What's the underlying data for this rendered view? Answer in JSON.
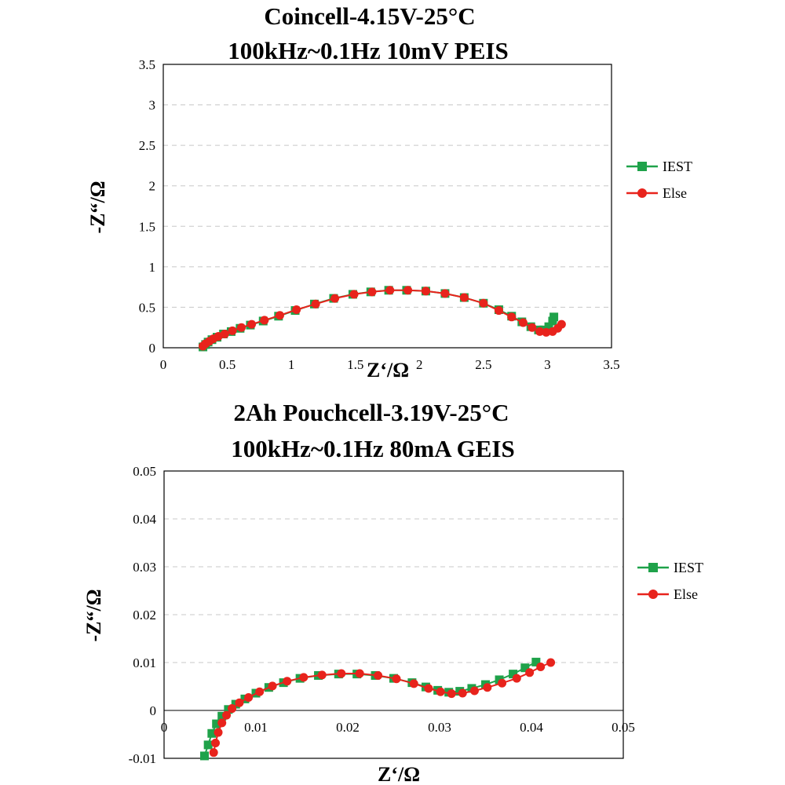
{
  "chart_data": [
    {
      "type": "scatter",
      "title_line1": "Coincell-4.15V-25°C",
      "title_line2": "100kHz~0.1Hz 10mV PEIS",
      "xlabel": "Z‘/Ω",
      "ylabel": "-Z“/Ω",
      "xlim": [
        0,
        3.5
      ],
      "ylim": [
        0,
        3.5
      ],
      "xticks": [
        "0",
        "0.5",
        "1",
        "1.5",
        "2",
        "2.5",
        "3",
        "3.5"
      ],
      "yticks": [
        "0",
        "0.5",
        "1",
        "1.5",
        "2",
        "2.5",
        "3",
        "3.5"
      ],
      "grid": "horizontal dashed",
      "legend_position": "right",
      "series": [
        {
          "name": "IEST",
          "color": "#1fa24a",
          "marker": "square",
          "x": [
            0.31,
            0.33,
            0.35,
            0.38,
            0.42,
            0.47,
            0.53,
            0.6,
            0.68,
            0.78,
            0.9,
            1.03,
            1.18,
            1.33,
            1.48,
            1.62,
            1.76,
            1.9,
            2.05,
            2.2,
            2.35,
            2.5,
            2.62,
            2.72,
            2.8,
            2.87,
            2.93,
            2.97,
            3.01,
            3.04,
            3.05
          ],
          "y": [
            0.01,
            0.04,
            0.07,
            0.1,
            0.13,
            0.17,
            0.2,
            0.24,
            0.28,
            0.33,
            0.39,
            0.46,
            0.54,
            0.61,
            0.66,
            0.69,
            0.71,
            0.71,
            0.7,
            0.67,
            0.62,
            0.55,
            0.47,
            0.39,
            0.32,
            0.26,
            0.22,
            0.22,
            0.26,
            0.33,
            0.38
          ]
        },
        {
          "name": "Else",
          "color": "#e8231c",
          "marker": "circle",
          "x": [
            0.31,
            0.33,
            0.36,
            0.39,
            0.43,
            0.48,
            0.54,
            0.61,
            0.69,
            0.79,
            0.91,
            1.04,
            1.19,
            1.34,
            1.49,
            1.63,
            1.77,
            1.91,
            2.05,
            2.2,
            2.35,
            2.5,
            2.62,
            2.72,
            2.81,
            2.88,
            2.94,
            2.99,
            3.04,
            3.08,
            3.11
          ],
          "y": [
            0.02,
            0.05,
            0.08,
            0.11,
            0.14,
            0.17,
            0.21,
            0.25,
            0.29,
            0.34,
            0.4,
            0.47,
            0.54,
            0.61,
            0.66,
            0.69,
            0.71,
            0.71,
            0.7,
            0.67,
            0.62,
            0.55,
            0.46,
            0.38,
            0.31,
            0.25,
            0.2,
            0.19,
            0.2,
            0.24,
            0.29
          ]
        }
      ]
    },
    {
      "type": "scatter",
      "title_line1": "2Ah Pouchcell-3.19V-25°C",
      "title_line2": "100kHz~0.1Hz 80mA GEIS",
      "xlabel": "Z‘/Ω",
      "ylabel": "-Z“/Ω",
      "xlim": [
        0,
        0.05
      ],
      "ylim": [
        -0.01,
        0.05
      ],
      "xticks": [
        "0",
        "0.01",
        "0.02",
        "0.03",
        "0.04",
        "0.05"
      ],
      "yticks": [
        "-0.01",
        "0",
        "0.01",
        "0.02",
        "0.03",
        "0.04",
        "0.05"
      ],
      "grid": "horizontal dashed",
      "legend_position": "right",
      "series": [
        {
          "name": "IEST",
          "color": "#1fa24a",
          "marker": "square",
          "x": [
            0.0044,
            0.0048,
            0.0052,
            0.0057,
            0.0063,
            0.007,
            0.0078,
            0.0088,
            0.01,
            0.0114,
            0.013,
            0.0148,
            0.0168,
            0.019,
            0.021,
            0.023,
            0.025,
            0.027,
            0.0285,
            0.0298,
            0.031,
            0.0322,
            0.0335,
            0.035,
            0.0365,
            0.038,
            0.0393,
            0.0405
          ],
          "y": [
            -0.0095,
            -0.0072,
            -0.0048,
            -0.0028,
            -0.0012,
            0.0002,
            0.0013,
            0.0024,
            0.0036,
            0.0048,
            0.0058,
            0.0067,
            0.0073,
            0.0076,
            0.0076,
            0.0073,
            0.0067,
            0.0058,
            0.0049,
            0.0042,
            0.0038,
            0.004,
            0.0046,
            0.0054,
            0.0064,
            0.0076,
            0.0089,
            0.0101
          ]
        },
        {
          "name": "Else",
          "color": "#e8231c",
          "marker": "circle",
          "x": [
            0.0054,
            0.0056,
            0.0059,
            0.0063,
            0.0068,
            0.0074,
            0.0082,
            0.0092,
            0.0104,
            0.0118,
            0.0134,
            0.0152,
            0.0172,
            0.0193,
            0.0213,
            0.0233,
            0.0253,
            0.0272,
            0.0288,
            0.0301,
            0.0313,
            0.0325,
            0.0338,
            0.0352,
            0.0368,
            0.0384,
            0.0398,
            0.041,
            0.0421
          ],
          "y": [
            -0.0088,
            -0.0068,
            -0.0046,
            -0.0026,
            -0.001,
            0.0004,
            0.0016,
            0.0027,
            0.0039,
            0.0051,
            0.0061,
            0.0069,
            0.0074,
            0.0077,
            0.0077,
            0.0073,
            0.0066,
            0.0056,
            0.0046,
            0.0039,
            0.0035,
            0.0036,
            0.0041,
            0.0048,
            0.0057,
            0.0067,
            0.0079,
            0.0091,
            0.01
          ]
        }
      ]
    }
  ]
}
